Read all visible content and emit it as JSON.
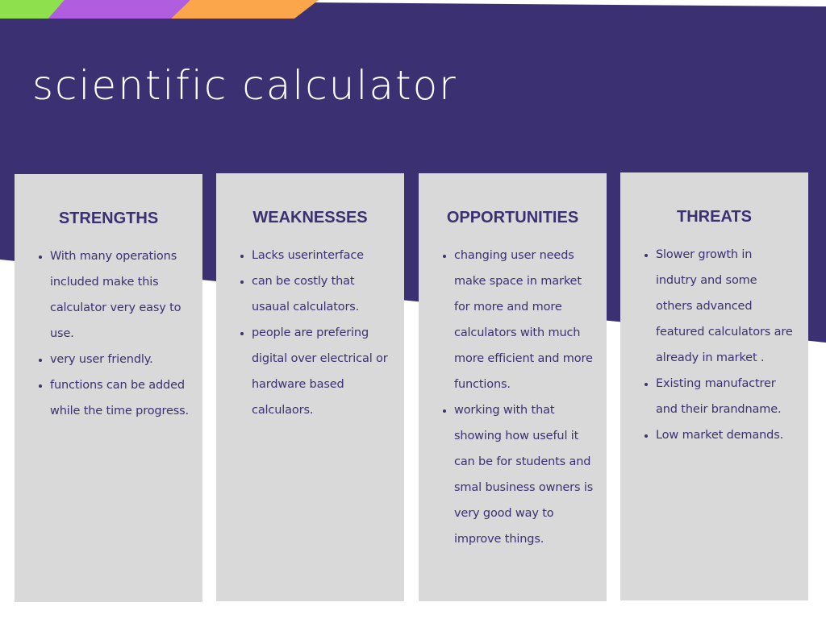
{
  "title": "scientific calculator",
  "colors": {
    "header": "#3b3172",
    "card": "#d9d9d9",
    "text": "#3b3172",
    "stripe_green": "#8fe04d",
    "stripe_purple": "#b05de0",
    "stripe_orange": "#fba64a"
  },
  "cards": [
    {
      "heading": "STRENGTHS",
      "items": [
        "With many operations included make this calculator very easy to use.",
        "very user friendly.",
        "functions can be added while the time progress."
      ]
    },
    {
      "heading": "WEAKNESSES",
      "items": [
        "Lacks userinterface",
        "can be costly that usaual calculators.",
        "people are prefering digital over electrical or hardware based calculaors."
      ]
    },
    {
      "heading": "OPPORTUNITIES",
      "items": [
        "changing user needs make space in market for more and more calculators with much more efficient and more functions.",
        "working with that showing how useful it can be for students and smal business owners is very good way to improve things."
      ]
    },
    {
      "heading": "THREATS",
      "items": [
        "Slower growth in indutry and some others advanced featured calculators are already in market .",
        "Existing manufactrer and their brandname.",
        "Low market demands."
      ]
    }
  ]
}
